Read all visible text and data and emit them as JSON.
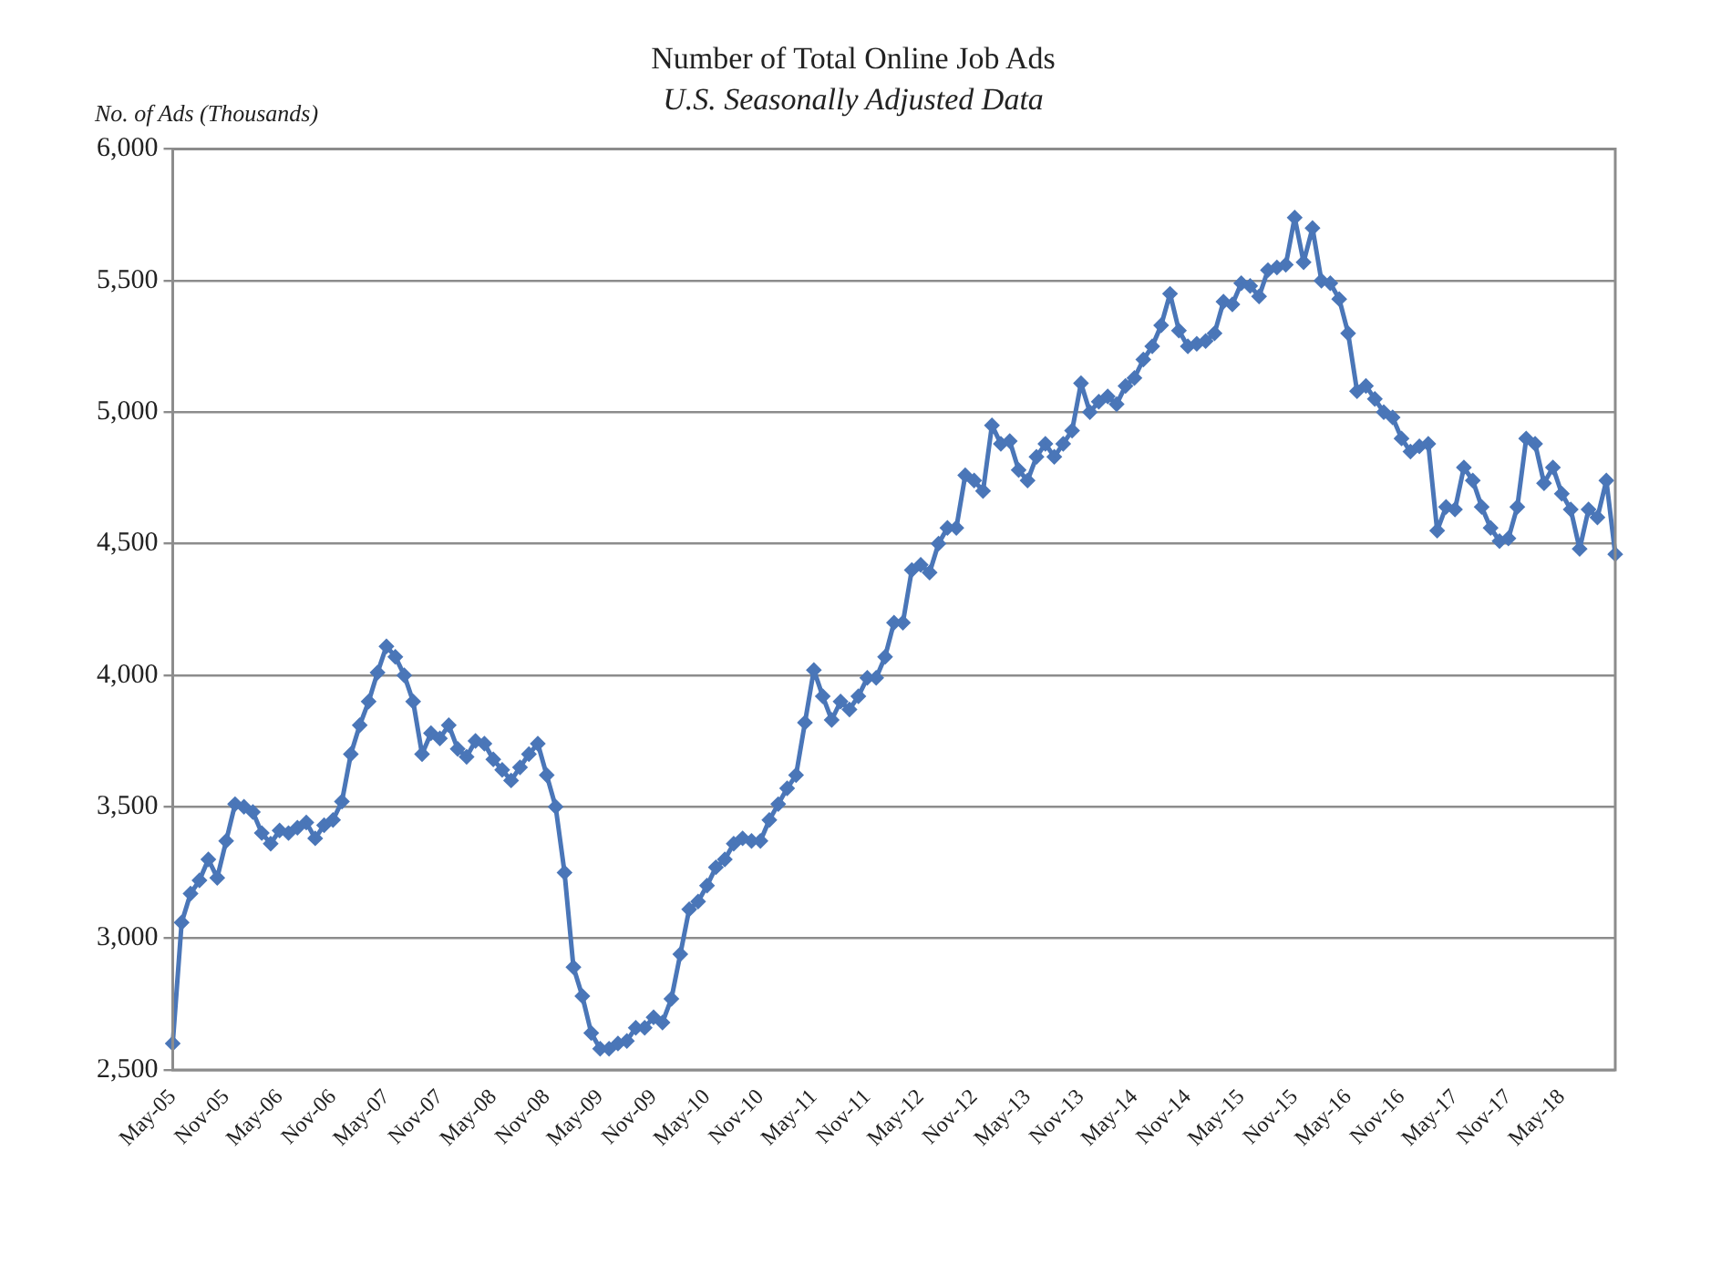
{
  "chart_data": {
    "type": "line",
    "title": "Number of Total Online Job Ads",
    "subtitle": "U.S. Seasonally Adjusted Data",
    "ylabel": "No. of Ads (Thousands)",
    "categories": [
      "May-05",
      null,
      null,
      null,
      null,
      null,
      "Nov-05",
      null,
      null,
      null,
      null,
      null,
      "May-06",
      null,
      null,
      null,
      null,
      null,
      "Nov-06",
      null,
      null,
      null,
      null,
      null,
      "May-07",
      null,
      null,
      null,
      null,
      null,
      "Nov-07",
      null,
      null,
      null,
      null,
      null,
      "May-08",
      null,
      null,
      null,
      null,
      null,
      "Nov-08",
      null,
      null,
      null,
      null,
      null,
      "May-09",
      null,
      null,
      null,
      null,
      null,
      "Nov-09",
      null,
      null,
      null,
      null,
      null,
      "May-10",
      null,
      null,
      null,
      null,
      null,
      "Nov-10",
      null,
      null,
      null,
      null,
      null,
      "May-11",
      null,
      null,
      null,
      null,
      null,
      "Nov-11",
      null,
      null,
      null,
      null,
      null,
      "May-12",
      null,
      null,
      null,
      null,
      null,
      "Nov-12",
      null,
      null,
      null,
      null,
      null,
      "May-13",
      null,
      null,
      null,
      null,
      null,
      "Nov-13",
      null,
      null,
      null,
      null,
      null,
      "May-14",
      null,
      null,
      null,
      null,
      null,
      "Nov-14",
      null,
      null,
      null,
      null,
      null,
      "May-15",
      null,
      null,
      null,
      null,
      null,
      "Nov-15",
      null,
      null,
      null,
      null,
      null,
      "May-16",
      null,
      null,
      null,
      null,
      null,
      "Nov-16",
      null,
      null,
      null,
      null,
      null,
      "May-17",
      null,
      null,
      null,
      null,
      null,
      "Nov-17",
      null,
      null,
      null,
      null,
      null,
      "May-18",
      null,
      null,
      null,
      null,
      null,
      null
    ],
    "series": [
      {
        "color": "#4a76b8",
        "values": [
          2600,
          3060,
          3170,
          3220,
          3300,
          3230,
          3370,
          3510,
          3500,
          3480,
          3400,
          3360,
          3410,
          3400,
          3420,
          3440,
          3380,
          3430,
          3450,
          3520,
          3700,
          3810,
          3900,
          4010,
          4110,
          4070,
          4000,
          3900,
          3700,
          3780,
          3760,
          3810,
          3720,
          3690,
          3750,
          3740,
          3680,
          3640,
          3600,
          3650,
          3700,
          3740,
          3620,
          3500,
          3250,
          2890,
          2780,
          2640,
          2580,
          2580,
          2600,
          2610,
          2660,
          2660,
          2700,
          2680,
          2770,
          2940,
          3110,
          3140,
          3200,
          3270,
          3300,
          3360,
          3380,
          3370,
          3370,
          3450,
          3510,
          3570,
          3620,
          3820,
          4020,
          3920,
          3830,
          3900,
          3870,
          3920,
          3990,
          3990,
          4070,
          4200,
          4200,
          4400,
          4420,
          4390,
          4500,
          4560,
          4560,
          4760,
          4740,
          4700,
          4950,
          4880,
          4890,
          4780,
          4740,
          4830,
          4880,
          4830,
          4880,
          4930,
          5110,
          5000,
          5040,
          5060,
          5030,
          5100,
          5130,
          5200,
          5250,
          5330,
          5450,
          5310,
          5250,
          5260,
          5270,
          5300,
          5420,
          5410,
          5490,
          5480,
          5440,
          5540,
          5550,
          5560,
          5740,
          5570,
          5700,
          5500,
          5490,
          5430,
          5300,
          5080,
          5100,
          5050,
          5000,
          4980,
          4900,
          4850,
          4870,
          4880,
          4550,
          4640,
          4630,
          4790,
          4740,
          4640,
          4560,
          4510,
          4520,
          4640,
          4900,
          4880,
          4730,
          4790,
          4690,
          4630,
          4480,
          4630,
          4600,
          4740,
          4460
        ]
      }
    ],
    "ylim": [
      2500,
      6000
    ],
    "yticks": [
      {
        "value": 2500,
        "label": "2,500"
      },
      {
        "value": 3000,
        "label": "3,000"
      },
      {
        "value": 3500,
        "label": "3,500"
      },
      {
        "value": 4000,
        "label": "4,000"
      },
      {
        "value": 4500,
        "label": "4,500"
      },
      {
        "value": 5000,
        "label": "5,000"
      },
      {
        "value": 5500,
        "label": "5,500"
      },
      {
        "value": 6000,
        "label": "6,000"
      }
    ],
    "grid": "y",
    "legend": false,
    "marker": "diamond",
    "line_style": "solid"
  }
}
